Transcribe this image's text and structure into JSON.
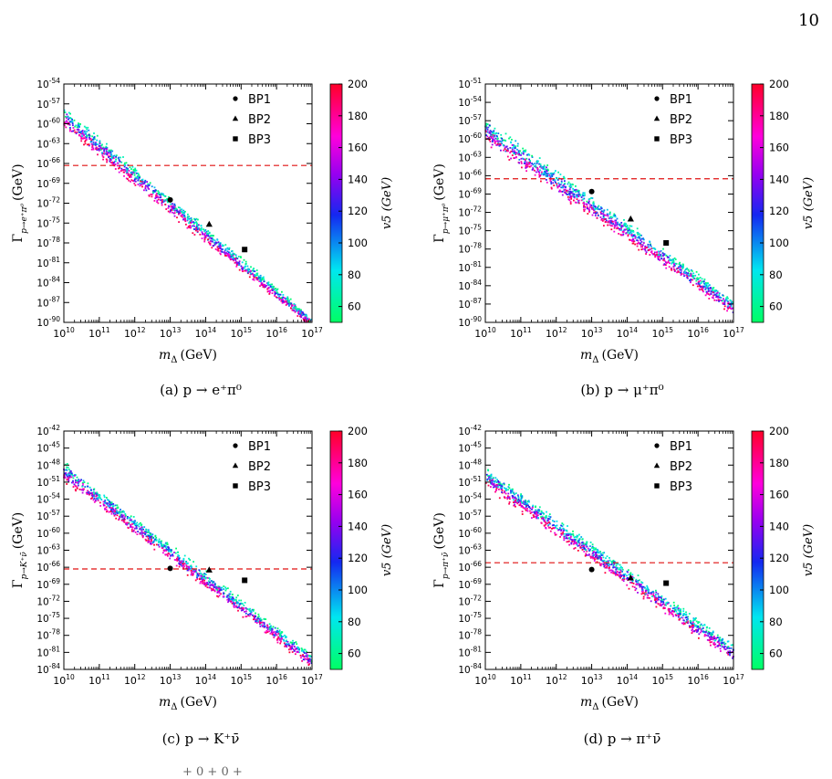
{
  "page_number": "10",
  "footer_fragment": "+ 0             + 0                 +",
  "chart_data": [
    {
      "type": "scatter",
      "caption": "(a)  p → e⁺π⁰",
      "ylabel_main": "Γ",
      "ylabel_sub": "p→e⁺π⁰",
      "ylabel_unit": "(GeV)",
      "xlabel": "m",
      "xlabel_sub": "Δ",
      "xlabel_unit": "(GeV)",
      "xscale": "log",
      "yscale": "log",
      "xlim_exp": [
        10,
        17
      ],
      "ylim_exp": [
        -90,
        -54
      ],
      "ytick_step": 3,
      "band_upper_start": -57,
      "band_upper_end": -89,
      "band_lower_start": -61,
      "band_lower_end": -91,
      "limit_line_exp": -66.3,
      "colorbar": {
        "label": "v5 (GeV)",
        "min": 50,
        "max": 200,
        "ticks": [
          "200",
          "180",
          "160",
          "140",
          "120",
          "100",
          "80",
          "60"
        ],
        "tick_values": [
          200,
          180,
          160,
          140,
          120,
          100,
          80,
          60
        ]
      },
      "benchmarks": [
        {
          "name": "BP1",
          "marker": "circle",
          "x_exp": 13.0,
          "y_exp": -71.5
        },
        {
          "name": "BP2",
          "marker": "triangle",
          "x_exp": 14.1,
          "y_exp": -75.2
        },
        {
          "name": "BP3",
          "marker": "square",
          "x_exp": 15.1,
          "y_exp": -79.0
        }
      ]
    },
    {
      "type": "scatter",
      "caption": "(b)  p → μ⁺π⁰",
      "ylabel_main": "Γ",
      "ylabel_sub": "p→μ⁺π⁰",
      "ylabel_unit": "(GeV)",
      "xlabel": "m",
      "xlabel_sub": "Δ",
      "xlabel_unit": "(GeV)",
      "xscale": "log",
      "yscale": "log",
      "xlim_exp": [
        10,
        17
      ],
      "ylim_exp": [
        -90,
        -51
      ],
      "ytick_step": 3,
      "band_upper_start": -56,
      "band_upper_end": -86,
      "band_lower_start": -61,
      "band_lower_end": -89,
      "limit_line_exp": -66.5,
      "colorbar": {
        "label": "v5 (GeV)",
        "min": 50,
        "max": 200,
        "ticks": [
          "200",
          "180",
          "160",
          "140",
          "120",
          "100",
          "80",
          "60"
        ],
        "tick_values": [
          200,
          180,
          160,
          140,
          120,
          100,
          80,
          60
        ]
      },
      "benchmarks": [
        {
          "name": "BP1",
          "marker": "circle",
          "x_exp": 13.0,
          "y_exp": -68.6
        },
        {
          "name": "BP2",
          "marker": "triangle",
          "x_exp": 14.1,
          "y_exp": -73.1
        },
        {
          "name": "BP3",
          "marker": "square",
          "x_exp": 15.1,
          "y_exp": -77.0
        }
      ]
    },
    {
      "type": "scatter",
      "caption": "(c)  p → K⁺ν̄",
      "ylabel_main": "Γ",
      "ylabel_sub": "p→K⁺ν̄",
      "ylabel_unit": "(GeV)",
      "xlabel": "m",
      "xlabel_sub": "Δ",
      "xlabel_unit": "(GeV)",
      "xscale": "log",
      "yscale": "log",
      "xlim_exp": [
        10,
        17
      ],
      "ylim_exp": [
        -84,
        -42
      ],
      "ytick_step": 3,
      "band_upper_start": -47,
      "band_upper_end": -81,
      "band_lower_start": -51,
      "band_lower_end": -84,
      "limit_line_exp": -66.3,
      "colorbar": {
        "label": "v5 (GeV)",
        "min": 50,
        "max": 200,
        "ticks": [
          "200",
          "180",
          "160",
          "140",
          "120",
          "100",
          "80",
          "60"
        ],
        "tick_values": [
          200,
          180,
          160,
          140,
          120,
          100,
          80,
          60
        ]
      },
      "benchmarks": [
        {
          "name": "BP1",
          "marker": "circle",
          "x_exp": 13.0,
          "y_exp": -66.2
        },
        {
          "name": "BP2",
          "marker": "triangle",
          "x_exp": 14.1,
          "y_exp": -66.5
        },
        {
          "name": "BP3",
          "marker": "square",
          "x_exp": 15.1,
          "y_exp": -68.3
        }
      ]
    },
    {
      "type": "scatter",
      "caption": "(d)  p → π⁺ν̄",
      "ylabel_main": "Γ",
      "ylabel_sub": "p→π⁺ν̄",
      "ylabel_unit": "(GeV)",
      "xlabel": "m",
      "xlabel_sub": "Δ",
      "xlabel_unit": "(GeV)",
      "xscale": "log",
      "yscale": "log",
      "xlim_exp": [
        10,
        17
      ],
      "ylim_exp": [
        -84,
        -42
      ],
      "ytick_step": 3,
      "band_upper_start": -48,
      "band_upper_end": -79,
      "band_lower_start": -52,
      "band_lower_end": -83,
      "limit_line_exp": -65.2,
      "colorbar": {
        "label": "v5 (GeV)",
        "min": 50,
        "max": 200,
        "ticks": [
          "200",
          "180",
          "160",
          "140",
          "120",
          "100",
          "80",
          "60"
        ],
        "tick_values": [
          200,
          180,
          160,
          140,
          120,
          100,
          80,
          60
        ]
      },
      "benchmarks": [
        {
          "name": "BP1",
          "marker": "circle",
          "x_exp": 13.0,
          "y_exp": -66.4
        },
        {
          "name": "BP2",
          "marker": "triangle",
          "x_exp": 14.1,
          "y_exp": -67.9
        },
        {
          "name": "BP3",
          "marker": "square",
          "x_exp": 15.1,
          "y_exp": -68.8
        }
      ]
    }
  ]
}
